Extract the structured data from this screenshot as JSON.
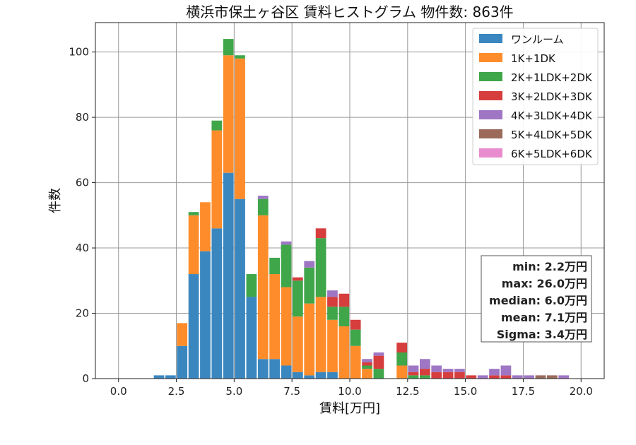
{
  "chart_data": {
    "type": "bar",
    "stacked": true,
    "title": "横浜市保土ヶ谷区 賃料ヒストグラム  物件数: 863件",
    "xlabel": "賃料[万円]",
    "ylabel": "件数",
    "xlim": [
      -1.0,
      21.0
    ],
    "ylim": [
      0,
      109
    ],
    "xticks": [
      "0.0",
      "2.5",
      "5.0",
      "7.5",
      "10.0",
      "12.5",
      "15.0",
      "17.5",
      "20.0"
    ],
    "xtick_values": [
      0,
      2.5,
      5,
      7.5,
      10,
      12.5,
      15,
      17.5,
      20
    ],
    "yticks": [
      "0",
      "20",
      "40",
      "60",
      "80",
      "100"
    ],
    "ytick_values": [
      0,
      20,
      40,
      60,
      80,
      100
    ],
    "grid": true,
    "legend_position": "top-right",
    "bin_width": 0.5,
    "x": [
      1.75,
      2.25,
      2.75,
      3.25,
      3.75,
      4.25,
      4.75,
      5.25,
      5.75,
      6.25,
      6.75,
      7.25,
      7.75,
      8.25,
      8.75,
      9.25,
      9.75,
      10.25,
      10.75,
      11.25,
      11.75,
      12.25,
      12.75,
      13.25,
      13.75,
      14.25,
      14.75,
      15.25,
      15.75,
      16.25,
      16.75,
      17.25,
      17.75,
      18.25,
      18.75,
      19.25,
      19.75
    ],
    "series": [
      {
        "name": "ワンルーム",
        "color": "#3a87c0",
        "values": [
          1,
          1,
          10,
          32,
          39,
          46,
          63,
          55,
          25,
          6,
          6,
          4,
          2,
          1,
          2,
          2,
          0,
          0,
          0,
          0,
          0,
          0,
          0,
          0,
          0,
          0,
          0,
          0,
          0,
          0,
          0,
          0,
          0,
          0,
          0,
          0,
          0
        ]
      },
      {
        "name": "1K+1DK",
        "color": "#ff8c2b",
        "values": [
          0,
          0,
          7,
          18,
          15,
          30,
          36,
          43,
          0,
          44,
          26,
          24,
          17,
          22,
          23,
          16,
          16,
          10,
          3,
          0,
          0,
          4,
          0,
          0,
          0,
          0,
          0,
          0,
          0,
          0,
          0,
          0,
          0,
          0,
          0,
          0,
          0
        ]
      },
      {
        "name": "2K+1LDK+2DK",
        "color": "#3fa64a",
        "values": [
          0,
          0,
          0,
          1,
          0,
          3,
          5,
          1,
          7,
          5,
          5,
          13,
          11,
          11,
          18,
          4,
          6,
          5,
          1,
          3,
          0,
          4,
          1,
          1,
          0,
          0,
          0,
          0,
          0,
          0,
          0,
          0,
          0,
          0,
          0,
          0,
          0
        ]
      },
      {
        "name": "3K+2LDK+3DK",
        "color": "#d63d3d",
        "values": [
          0,
          0,
          0,
          0,
          0,
          0,
          0,
          0,
          0,
          0,
          0,
          0,
          1,
          0,
          3,
          3,
          4,
          3,
          1,
          4,
          0,
          3,
          1,
          2,
          2,
          2,
          2,
          1,
          0,
          1,
          1,
          0,
          0,
          0,
          0,
          0,
          0
        ]
      },
      {
        "name": "4K+3LDK+4DK",
        "color": "#9e76c4",
        "values": [
          0,
          0,
          0,
          0,
          0,
          0,
          0,
          0,
          0,
          1,
          0,
          1,
          0,
          2,
          0,
          2,
          0,
          0,
          1,
          1,
          0,
          0,
          2,
          3,
          2,
          1,
          1,
          0,
          1,
          2,
          3,
          1,
          1,
          0,
          0,
          1,
          0
        ]
      },
      {
        "name": "5K+4LDK+5DK",
        "color": "#9b6a5b",
        "values": [
          0,
          0,
          0,
          0,
          0,
          0,
          0,
          0,
          0,
          0,
          0,
          0,
          0,
          0,
          0,
          0,
          0,
          0,
          0,
          0,
          0,
          0,
          0,
          0,
          0,
          0,
          0,
          0,
          0,
          0,
          0,
          0,
          0,
          1,
          1,
          0,
          0
        ]
      },
      {
        "name": "6K+5LDK+6DK",
        "color": "#e88bcf",
        "values": [
          0,
          0,
          0,
          0,
          0,
          0,
          0,
          0,
          0,
          0,
          0,
          0,
          0,
          0,
          0,
          0,
          0,
          0,
          0,
          0,
          0,
          0,
          0,
          0,
          0,
          0,
          0,
          0,
          0,
          0,
          0,
          0,
          0,
          0,
          0,
          0,
          0
        ]
      }
    ],
    "stats": [
      "min: 2.2万円",
      "max: 26.0万円",
      "median: 6.0万円",
      "mean: 7.1万円",
      "Sigma: 3.4万円"
    ]
  }
}
